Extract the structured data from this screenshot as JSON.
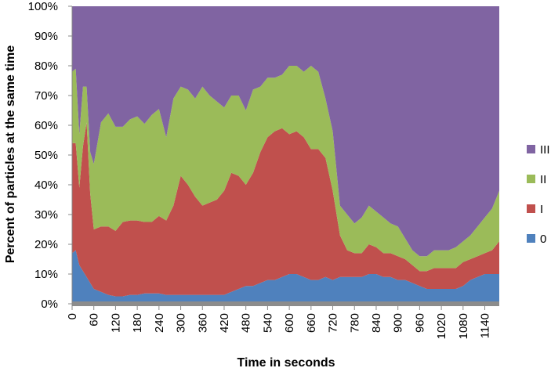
{
  "chart_data": {
    "type": "area",
    "stacked": "percent",
    "xlabel": "Time in seconds",
    "ylabel": "Percent of particles at the same time",
    "xlim": [
      0,
      1180
    ],
    "ylim": [
      0,
      100
    ],
    "x_ticks": [
      0,
      60,
      120,
      180,
      240,
      300,
      360,
      420,
      480,
      540,
      600,
      660,
      720,
      780,
      840,
      900,
      960,
      1020,
      1080,
      1140
    ],
    "y_ticks": [
      "0%",
      "10%",
      "20%",
      "30%",
      "40%",
      "50%",
      "60%",
      "70%",
      "80%",
      "90%",
      "100%"
    ],
    "legend_position": "right",
    "x": [
      0,
      10,
      20,
      30,
      40,
      50,
      60,
      80,
      100,
      120,
      140,
      160,
      180,
      200,
      220,
      240,
      260,
      280,
      300,
      320,
      340,
      360,
      380,
      400,
      420,
      440,
      460,
      480,
      500,
      520,
      540,
      560,
      580,
      600,
      620,
      640,
      660,
      680,
      700,
      720,
      740,
      760,
      780,
      800,
      820,
      840,
      860,
      880,
      900,
      920,
      940,
      960,
      980,
      1000,
      1020,
      1040,
      1060,
      1080,
      1100,
      1120,
      1140,
      1160,
      1180
    ],
    "series": [
      {
        "name": "0",
        "color": "#4f81bd",
        "values": [
          17,
          18,
          13,
          11,
          9,
          7,
          5,
          4,
          3,
          2.5,
          2.5,
          3,
          3,
          3.5,
          3.5,
          3.5,
          3,
          3,
          3,
          3,
          3,
          3,
          3,
          3,
          3,
          4,
          5,
          6,
          6,
          7,
          8,
          8,
          9,
          10,
          10,
          9,
          8,
          8,
          9,
          8,
          9,
          9,
          9,
          9,
          10,
          10,
          9,
          9,
          8,
          8,
          7,
          6,
          5,
          5,
          5,
          5,
          5,
          6,
          8,
          9,
          10,
          10,
          10
        ]
      },
      {
        "name": "I",
        "color": "#c0504d",
        "values": [
          37,
          36,
          26,
          42,
          52,
          30,
          20,
          22,
          23,
          22,
          25,
          25,
          25,
          24,
          24,
          26,
          25,
          30,
          40,
          37,
          33,
          30,
          31,
          32,
          35,
          40,
          38,
          34,
          38,
          44,
          48,
          50,
          50,
          47,
          48,
          47,
          44,
          44,
          40,
          30,
          14,
          9,
          8,
          8,
          10,
          9,
          8,
          8,
          8,
          7,
          6,
          5,
          6,
          7,
          7,
          7,
          7,
          8,
          7,
          7,
          7,
          8,
          11
        ]
      },
      {
        "name": "II",
        "color": "#9bbb59",
        "values": [
          24,
          25,
          18,
          20,
          12,
          14,
          22,
          35,
          38,
          35,
          32,
          34,
          35,
          33,
          36,
          36,
          28,
          36,
          30,
          32,
          33,
          40,
          36,
          33,
          28,
          26,
          27,
          25,
          28,
          22,
          20,
          18,
          18,
          23,
          22,
          22,
          28,
          26,
          20,
          20,
          10,
          12,
          10,
          12,
          13,
          12,
          12,
          10,
          10,
          7,
          5,
          5,
          5,
          6,
          6,
          6,
          7,
          7,
          8,
          10,
          12,
          14,
          17
        ]
      },
      {
        "name": "III",
        "color": "#8064a2",
        "values": [
          22,
          21,
          43,
          27,
          27,
          49,
          53,
          39,
          36,
          40.5,
          40.5,
          38,
          37,
          39.5,
          36.5,
          34.5,
          44,
          31,
          27,
          28,
          31,
          27,
          30,
          32,
          34,
          30,
          30,
          35,
          28,
          27,
          24,
          24,
          23,
          20,
          20,
          22,
          20,
          22,
          31,
          42,
          67,
          70,
          73,
          71,
          67,
          69,
          71,
          73,
          74,
          78,
          82,
          84,
          84,
          82,
          82,
          82,
          81,
          79,
          77,
          74,
          71,
          68,
          62
        ]
      }
    ]
  }
}
